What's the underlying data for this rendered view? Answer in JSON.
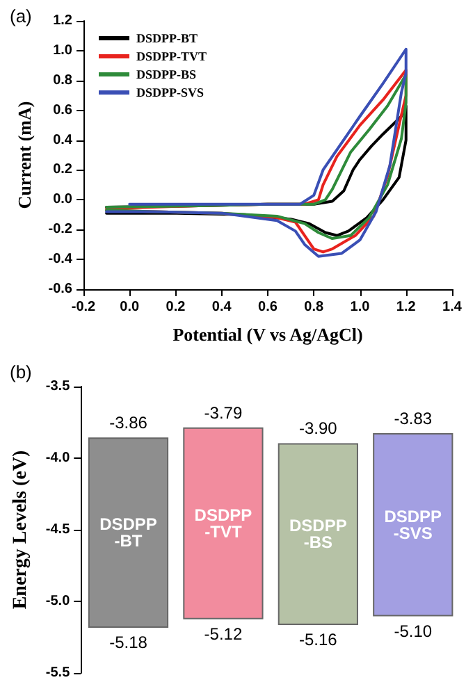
{
  "chart_data": [
    {
      "type": "line",
      "title": "(a)",
      "xlabel": "Potential (V vs Ag/AgCl)",
      "ylabel": "Current (mA)",
      "legend": "top left",
      "marker": "none",
      "line_style": "solid",
      "grid": false,
      "xlim": [
        -0.2,
        1.4
      ],
      "xticks": [
        -0.2,
        {
          "value": 0,
          "label": "0.0"
        },
        0.2,
        0.4,
        0.6,
        0.8,
        {
          "value": 1,
          "label": "1.0"
        },
        1.2,
        1.4
      ],
      "ylim": [
        -0.6,
        1.2
      ],
      "yticks": [
        -0.6,
        -0.4,
        -0.2,
        {
          "value": 0,
          "label": "0.0"
        },
        0.2,
        0.4,
        0.6,
        0.8,
        {
          "value": 1,
          "label": "1.0"
        },
        1.2
      ],
      "series": [
        {
          "name": "DSDPP-BT",
          "color": "#000000",
          "x": [
            -0.1,
            0.3,
            0.6,
            0.8,
            0.88,
            0.93,
            0.97,
            1.0,
            1.05,
            1.1,
            1.18,
            1.2,
            1.2,
            1.17,
            1.1,
            1.03,
            0.95,
            0.9,
            0.85,
            0.78,
            0.7,
            0.5,
            0.2,
            -0.1
          ],
          "values": [
            -0.05,
            -0.04,
            -0.03,
            -0.03,
            -0.01,
            0.06,
            0.2,
            0.27,
            0.36,
            0.44,
            0.56,
            0.63,
            0.4,
            0.15,
            0.0,
            -0.12,
            -0.21,
            -0.24,
            -0.22,
            -0.16,
            -0.13,
            -0.1,
            -0.09,
            -0.09
          ]
        },
        {
          "name": "DSDPP-TVT",
          "color": "#e8231e",
          "x": [
            -0.1,
            0.3,
            0.6,
            0.76,
            0.82,
            0.84,
            0.9,
            1.0,
            1.1,
            1.2,
            1.2,
            1.18,
            1.12,
            1.06,
            0.98,
            0.88,
            0.84,
            0.8,
            0.76,
            0.72,
            0.64,
            0.4,
            0.1,
            -0.1
          ],
          "values": [
            -0.06,
            -0.04,
            -0.03,
            -0.03,
            0.0,
            0.1,
            0.29,
            0.5,
            0.67,
            0.87,
            0.7,
            0.57,
            0.16,
            -0.11,
            -0.24,
            -0.33,
            -0.35,
            -0.33,
            -0.24,
            -0.15,
            -0.12,
            -0.09,
            -0.08,
            -0.07
          ]
        },
        {
          "name": "DSDPP-BS",
          "color": "#2e8b3a",
          "x": [
            -0.1,
            0.3,
            0.6,
            0.8,
            0.85,
            0.88,
            0.96,
            1.04,
            1.12,
            1.2,
            1.2,
            1.18,
            1.12,
            1.04,
            0.96,
            0.88,
            0.82,
            0.76,
            0.64,
            0.4,
            0.1,
            -0.1
          ],
          "values": [
            -0.05,
            -0.04,
            -0.03,
            -0.03,
            0.0,
            0.07,
            0.32,
            0.47,
            0.63,
            0.84,
            0.65,
            0.41,
            0.1,
            -0.12,
            -0.24,
            -0.26,
            -0.22,
            -0.16,
            -0.11,
            -0.09,
            -0.08,
            -0.07
          ]
        },
        {
          "name": "DSDPP-SVS",
          "color": "#3a4fb5",
          "x": [
            0.0,
            0.3,
            0.6,
            0.74,
            0.8,
            0.84,
            0.92,
            1.0,
            1.1,
            1.2,
            1.2,
            1.18,
            1.13,
            1.07,
            1.0,
            0.92,
            0.82,
            0.76,
            0.72,
            0.64,
            0.4,
            0.1,
            -0.1
          ],
          "values": [
            -0.03,
            -0.03,
            -0.03,
            -0.03,
            0.03,
            0.2,
            0.38,
            0.56,
            0.78,
            1.01,
            0.85,
            0.72,
            0.23,
            -0.08,
            -0.27,
            -0.36,
            -0.38,
            -0.3,
            -0.21,
            -0.14,
            -0.09,
            -0.08,
            -0.08
          ]
        }
      ]
    },
    {
      "type": "bar",
      "title": "(b)",
      "ylabel": "Energy Levels (eV)",
      "tick_labels": "y",
      "grid": false,
      "categories": [
        "DSDPP-BT",
        "DSDPP-TVT",
        "DSDPP-BS",
        "DSDPP-SVS"
      ],
      "base": [
        -5.18,
        -5.12,
        -5.16,
        -5.1
      ],
      "values": [
        1.32,
        1.33,
        1.26,
        1.27
      ],
      "colors": [
        "#8e8e8e",
        "#f28c9e",
        "#b6c2a6",
        "#a39fe2"
      ],
      "ylim": [
        -5.5,
        -3.5
      ],
      "yticks": [
        -5.5,
        {
          "value": -5,
          "label": "-5.0"
        },
        -4.5,
        {
          "value": -4,
          "label": "-4.0"
        },
        -3.5
      ],
      "annotations": [
        {
          "text": "-3.86",
          "x": "DSDPP-BT",
          "y": -3.86
        },
        {
          "text": "-3.79",
          "x": "DSDPP-TVT",
          "y": -3.79
        },
        {
          "text": "-3.90",
          "x": "DSDPP-BS",
          "y": -3.9
        },
        {
          "text": "-3.83",
          "x": "DSDPP-SVS",
          "y": -3.83
        },
        {
          "text": "-5.18",
          "x": "DSDPP-BT",
          "y": -5.18
        },
        {
          "text": "-5.12",
          "x": "DSDPP-TVT",
          "y": -5.12
        },
        {
          "text": "-5.16",
          "x": "DSDPP-BS",
          "y": -5.16
        },
        {
          "text": "-5.10",
          "x": "DSDPP-SVS",
          "y": -5.1
        }
      ]
    }
  ]
}
